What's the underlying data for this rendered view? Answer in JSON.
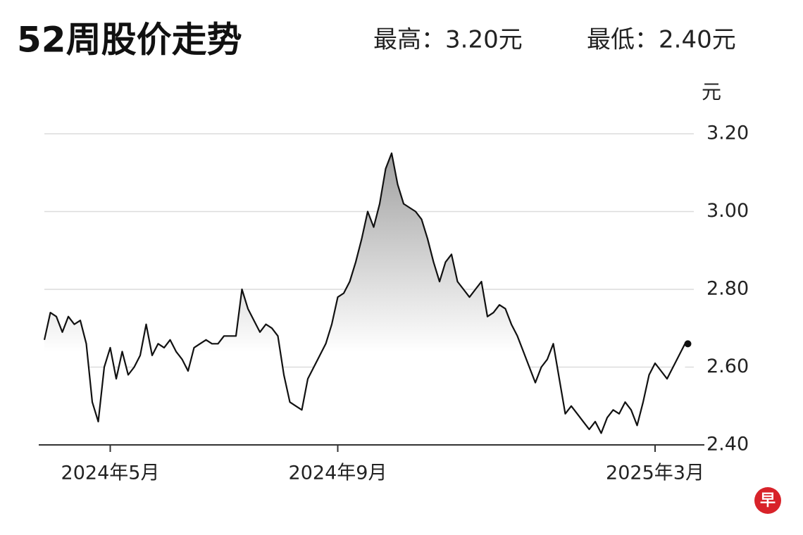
{
  "chart_data": {
    "type": "line",
    "title": "52周股价走势",
    "annotations": [
      "最高：3.20元",
      "最低：2.40元"
    ],
    "y_label": "元",
    "logo": "早",
    "color": "#111111",
    "ylim": [
      2.4,
      3.2
    ],
    "yticks": [
      {
        "value": 2.4,
        "label": "2.40"
      },
      {
        "value": 2.6,
        "label": "2.60"
      },
      {
        "value": 2.8,
        "label": "2.80"
      },
      {
        "value": 3.0,
        "label": "3.00"
      },
      {
        "value": 3.2,
        "label": "3.20"
      }
    ],
    "grid": true,
    "categories": [
      null,
      null,
      null,
      null,
      null,
      null,
      null,
      null,
      null,
      null,
      null,
      "2024年5月",
      null,
      null,
      null,
      null,
      null,
      null,
      null,
      null,
      null,
      null,
      null,
      null,
      null,
      null,
      null,
      null,
      null,
      null,
      null,
      null,
      null,
      null,
      null,
      null,
      null,
      null,
      null,
      null,
      null,
      null,
      null,
      null,
      null,
      null,
      null,
      null,
      null,
      "2024年9月",
      null,
      null,
      null,
      null,
      null,
      null,
      null,
      null,
      null,
      null,
      null,
      null,
      null,
      null,
      null,
      null,
      null,
      null,
      null,
      null,
      null,
      null,
      null,
      null,
      null,
      null,
      null,
      null,
      null,
      null,
      null,
      null,
      null,
      null,
      null,
      null,
      null,
      null,
      null,
      null,
      null,
      null,
      null,
      null,
      null,
      null,
      null,
      null,
      null,
      null,
      null,
      null,
      "2025年3月",
      null,
      null,
      null,
      null,
      null
    ],
    "values": [
      2.67,
      2.74,
      2.73,
      2.69,
      2.73,
      2.71,
      2.72,
      2.66,
      2.51,
      2.46,
      2.6,
      2.65,
      2.57,
      2.64,
      2.58,
      2.6,
      2.63,
      2.71,
      2.63,
      2.66,
      2.65,
      2.67,
      2.64,
      2.62,
      2.59,
      2.65,
      2.66,
      2.67,
      2.66,
      2.66,
      2.68,
      2.68,
      2.68,
      2.8,
      2.75,
      2.72,
      2.69,
      2.71,
      2.7,
      2.68,
      2.58,
      2.51,
      2.5,
      2.49,
      2.57,
      2.6,
      2.63,
      2.66,
      2.71,
      2.78,
      2.79,
      2.82,
      2.87,
      2.93,
      3.0,
      2.96,
      3.02,
      3.11,
      3.15,
      3.07,
      3.02,
      3.01,
      3.0,
      2.98,
      2.93,
      2.87,
      2.82,
      2.87,
      2.89,
      2.82,
      2.8,
      2.78,
      2.8,
      2.82,
      2.73,
      2.74,
      2.76,
      2.75,
      2.71,
      2.68,
      2.64,
      2.6,
      2.56,
      2.6,
      2.62,
      2.66,
      2.57,
      2.48,
      2.5,
      2.48,
      2.46,
      2.44,
      2.46,
      2.43,
      2.47,
      2.49,
      2.48,
      2.51,
      2.49,
      2.45,
      2.51,
      2.58,
      2.61,
      2.59,
      2.57,
      2.6,
      2.63,
      2.66
    ]
  }
}
